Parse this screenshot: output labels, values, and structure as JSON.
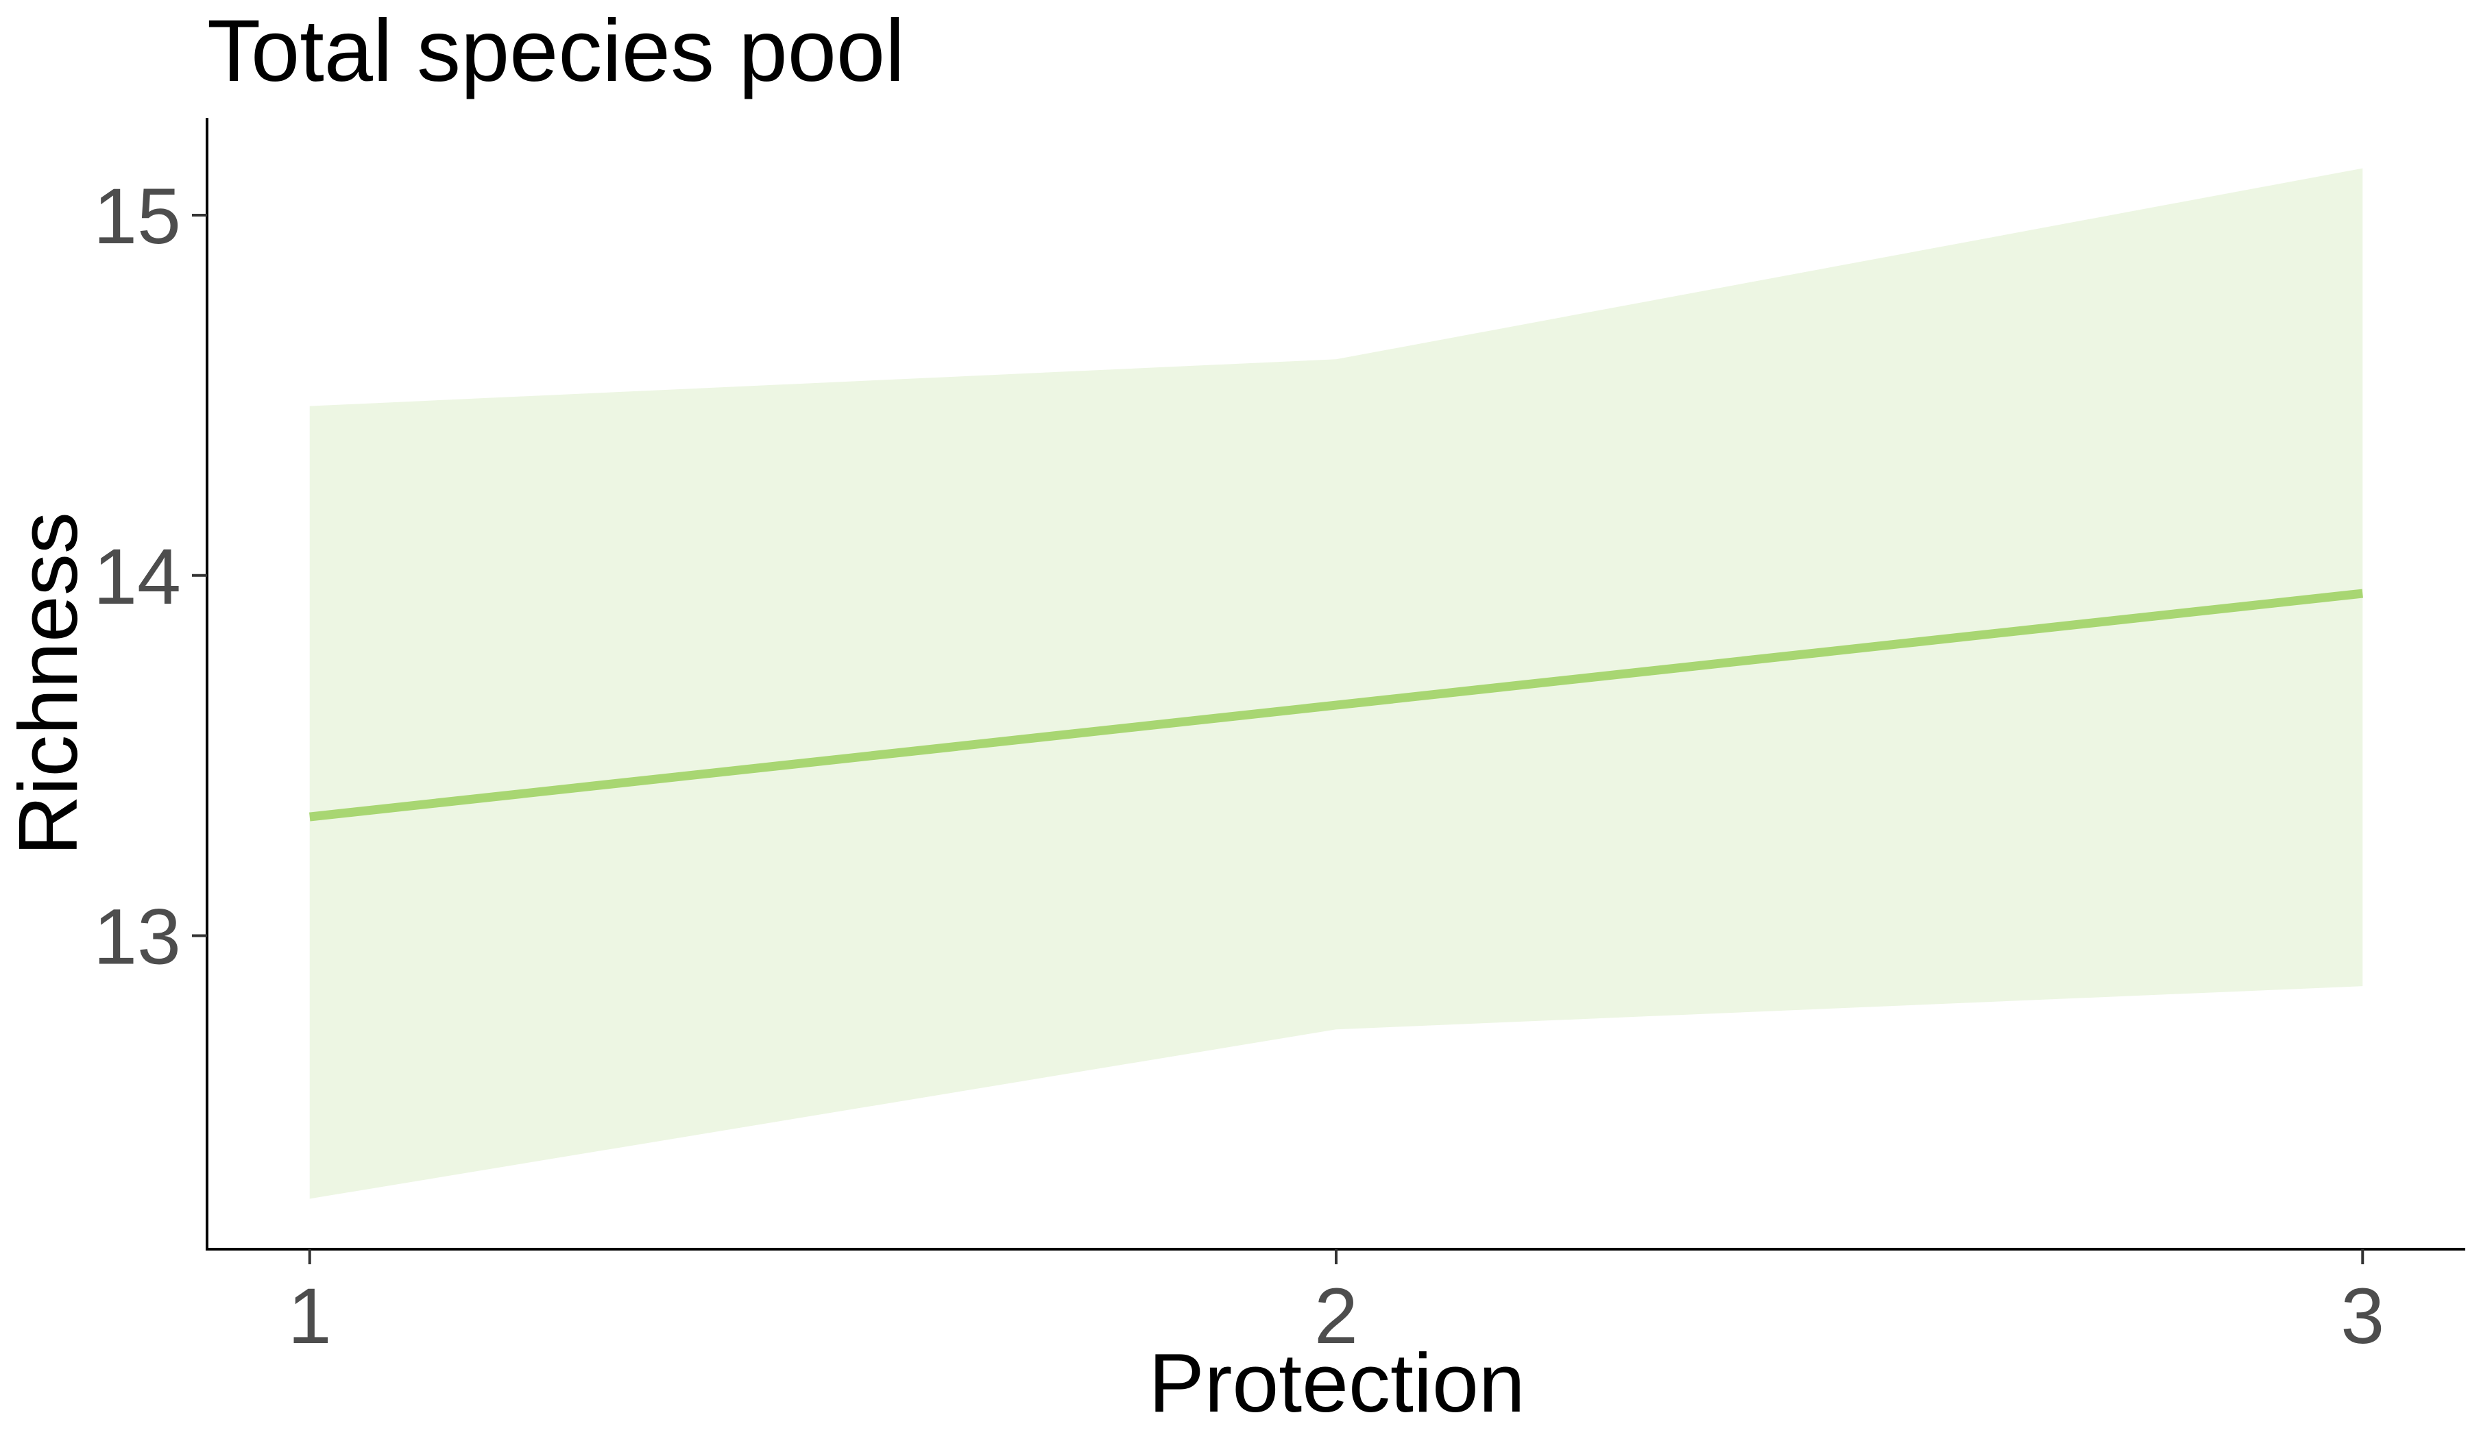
{
  "chart_data": {
    "type": "line",
    "title": "Total species pool",
    "xlabel": "Protection",
    "ylabel": "Richness",
    "x": [
      1,
      2,
      3
    ],
    "xlim": [
      0.9,
      3.1
    ],
    "ylim": [
      12.13,
      15.27
    ],
    "x_ticks": [
      "1",
      "2",
      "3"
    ],
    "y_ticks": [
      "13",
      "14",
      "15"
    ],
    "x_tick_values": [
      1,
      2,
      3
    ],
    "y_tick_values": [
      13,
      14,
      15
    ],
    "grid": false,
    "legend": "none",
    "series": [
      {
        "fit": [
          13.33,
          13.64,
          13.95
        ],
        "ci_lower": [
          12.27,
          12.74,
          12.86
        ],
        "ci_upper": [
          14.47,
          14.6,
          15.13
        ],
        "line_color": "#a8d672",
        "band_color": "#edf6e3"
      }
    ]
  }
}
